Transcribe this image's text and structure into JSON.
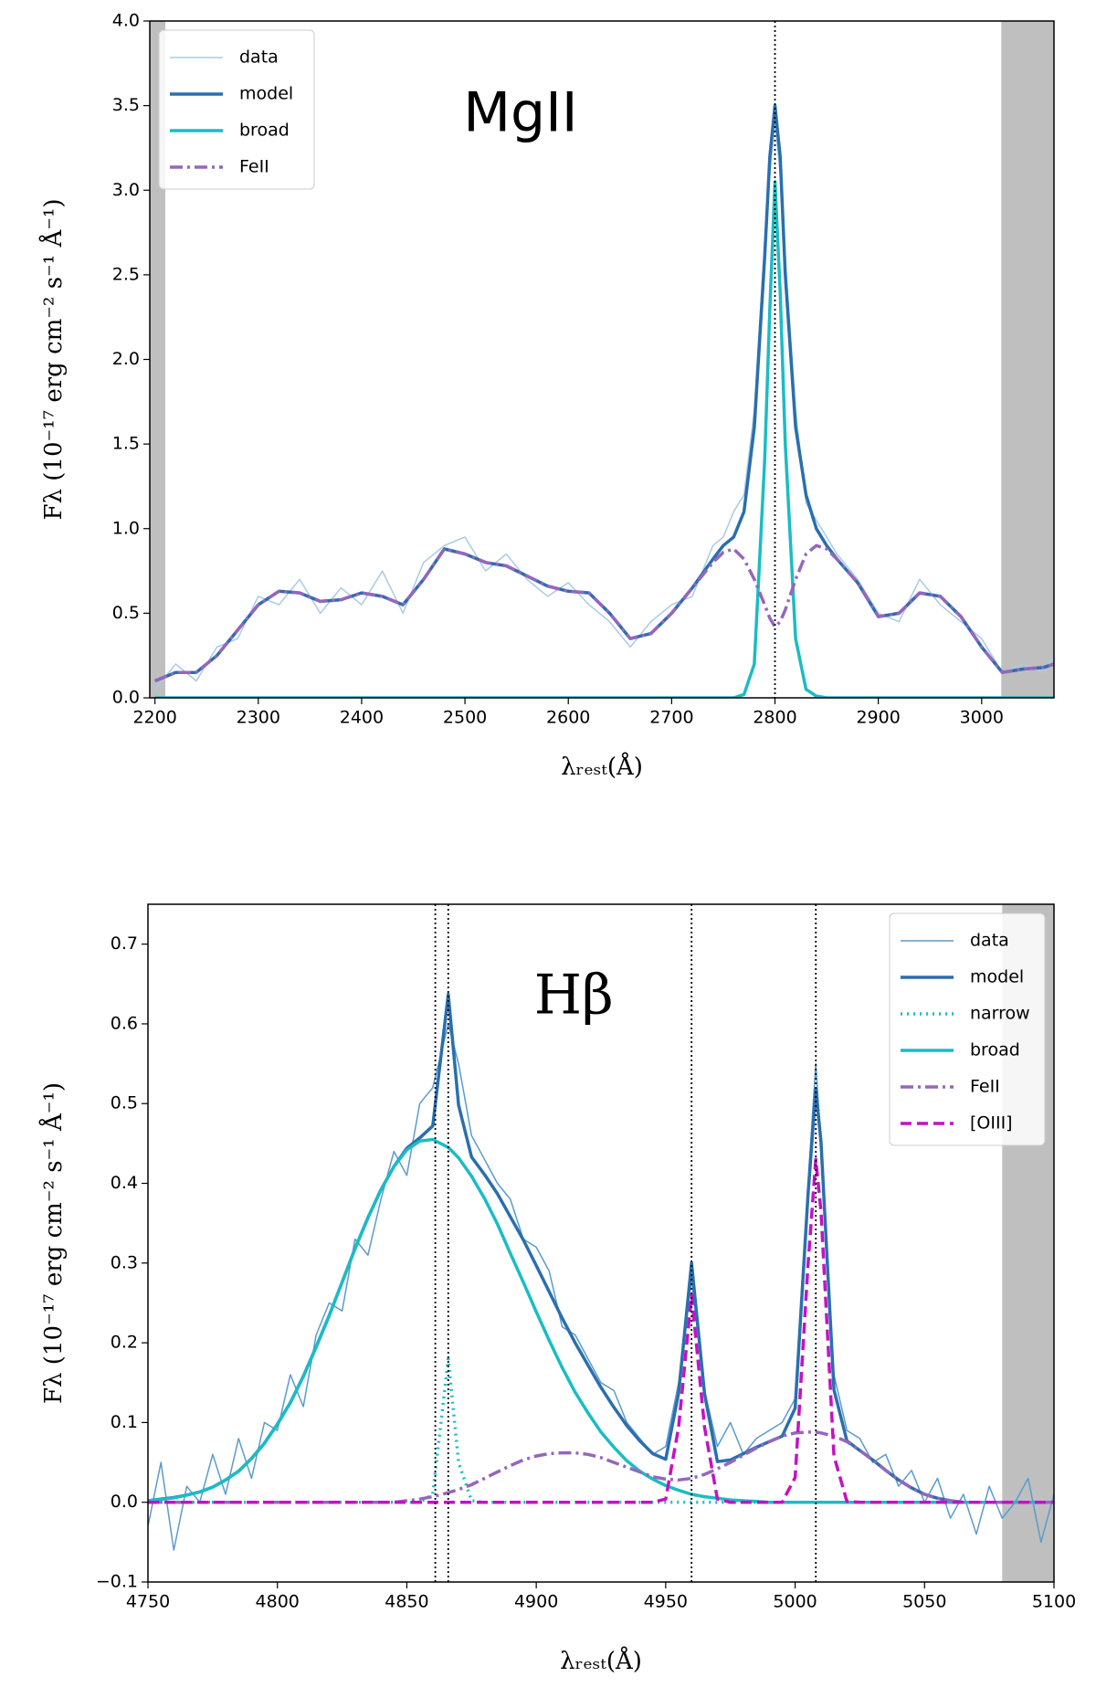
{
  "chart_data": [
    {
      "type": "line",
      "title": "MgII",
      "xlabel": "λᵣₑₛₜ(Å)",
      "ylabel": "Fλ (10⁻¹⁷ erg cm⁻² s⁻¹ Å⁻¹)",
      "x": [
        2200,
        2220,
        2240,
        2260,
        2280,
        2300,
        2320,
        2340,
        2360,
        2380,
        2400,
        2420,
        2440,
        2460,
        2480,
        2500,
        2520,
        2540,
        2560,
        2580,
        2600,
        2620,
        2640,
        2660,
        2680,
        2700,
        2720,
        2740,
        2750,
        2760,
        2770,
        2780,
        2790,
        2795,
        2800,
        2805,
        2810,
        2820,
        2830,
        2840,
        2850,
        2860,
        2880,
        2900,
        2920,
        2940,
        2960,
        2980,
        3000,
        3020,
        3040,
        3060,
        3070
      ],
      "series": [
        {
          "name": "data",
          "color": "#a9cbe4",
          "linestyle": "solid",
          "linewidth": 1.5,
          "values": [
            0.05,
            0.2,
            0.1,
            0.3,
            0.35,
            0.6,
            0.55,
            0.7,
            0.5,
            0.65,
            0.55,
            0.75,
            0.5,
            0.8,
            0.9,
            0.95,
            0.75,
            0.85,
            0.7,
            0.6,
            0.68,
            0.55,
            0.45,
            0.3,
            0.45,
            0.55,
            0.6,
            0.9,
            0.95,
            1.1,
            1.2,
            1.7,
            2.7,
            3.1,
            3.4,
            3.1,
            2.6,
            1.7,
            1.15,
            1.05,
            0.95,
            0.85,
            0.7,
            0.5,
            0.45,
            0.7,
            0.55,
            0.45,
            0.35,
            0.15,
            0.2,
            0.15,
            0.25
          ]
        },
        {
          "name": "model",
          "color": "#2a6fae",
          "linestyle": "solid",
          "linewidth": 3.5,
          "values": [
            0.1,
            0.15,
            0.15,
            0.25,
            0.4,
            0.55,
            0.63,
            0.62,
            0.57,
            0.58,
            0.62,
            0.6,
            0.55,
            0.7,
            0.88,
            0.85,
            0.8,
            0.78,
            0.72,
            0.66,
            0.63,
            0.62,
            0.5,
            0.35,
            0.38,
            0.5,
            0.65,
            0.82,
            0.9,
            0.95,
            1.1,
            1.6,
            2.6,
            3.2,
            3.5,
            3.2,
            2.5,
            1.6,
            1.2,
            1.0,
            0.9,
            0.82,
            0.68,
            0.48,
            0.5,
            0.62,
            0.6,
            0.48,
            0.3,
            0.15,
            0.17,
            0.18,
            0.2
          ]
        },
        {
          "name": "broad",
          "color": "#1bbcc4",
          "linestyle": "solid",
          "linewidth": 3.5,
          "values": [
            0,
            0,
            0,
            0,
            0,
            0,
            0,
            0,
            0,
            0,
            0,
            0,
            0,
            0,
            0,
            0,
            0,
            0,
            0,
            0,
            0,
            0,
            0,
            0,
            0,
            0,
            0,
            0,
            0,
            0,
            0.02,
            0.2,
            1.4,
            2.3,
            3.05,
            2.4,
            1.5,
            0.35,
            0.05,
            0.01,
            0,
            0,
            0,
            0,
            0,
            0,
            0,
            0,
            0,
            0,
            0,
            0,
            0
          ]
        },
        {
          "name": "FeII",
          "color": "#9467bd",
          "linestyle": "dashdot",
          "linewidth": 3.5,
          "values": [
            0.1,
            0.15,
            0.15,
            0.25,
            0.4,
            0.55,
            0.63,
            0.62,
            0.57,
            0.58,
            0.62,
            0.6,
            0.55,
            0.7,
            0.88,
            0.85,
            0.8,
            0.78,
            0.72,
            0.66,
            0.63,
            0.62,
            0.5,
            0.35,
            0.38,
            0.5,
            0.65,
            0.8,
            0.86,
            0.88,
            0.82,
            0.7,
            0.55,
            0.47,
            0.42,
            0.45,
            0.52,
            0.7,
            0.85,
            0.9,
            0.88,
            0.82,
            0.68,
            0.48,
            0.5,
            0.62,
            0.6,
            0.48,
            0.3,
            0.15,
            0.17,
            0.18,
            0.2
          ]
        }
      ],
      "xlim": [
        2195,
        3070
      ],
      "xticks": [
        2200,
        2300,
        2400,
        2500,
        2600,
        2700,
        2800,
        2900,
        3000
      ],
      "ylim": [
        0,
        4
      ],
      "yticks": [
        {
          "value": 0,
          "label": "0.0"
        },
        {
          "value": 0.5,
          "label": "0.5"
        },
        {
          "value": 1,
          "label": "1.0"
        },
        {
          "value": 1.5,
          "label": "1.5"
        },
        {
          "value": 2,
          "label": "2.0"
        },
        {
          "value": 2.5,
          "label": "2.5"
        },
        {
          "value": 3,
          "label": "3.0"
        },
        {
          "value": 3.5,
          "label": "3.5"
        },
        {
          "value": 4,
          "label": "4.0"
        }
      ],
      "vlines": [
        2800
      ],
      "shaded_regions": [
        [
          2195,
          2210
        ],
        [
          3019,
          3070
        ]
      ],
      "shade_color": "#bfbfbf",
      "legend": "upper left"
    },
    {
      "type": "line",
      "title": "Hβ",
      "xlabel": "λᵣₑₛₜ(Å)",
      "ylabel": "Fλ (10⁻¹⁷ erg cm⁻² s⁻¹ Å⁻¹)",
      "x": [
        4750,
        4755,
        4760,
        4765,
        4770,
        4775,
        4780,
        4785,
        4790,
        4795,
        4800,
        4805,
        4810,
        4815,
        4820,
        4825,
        4830,
        4835,
        4840,
        4845,
        4850,
        4855,
        4860,
        4866,
        4870,
        4875,
        4880,
        4885,
        4890,
        4895,
        4900,
        4905,
        4910,
        4915,
        4920,
        4925,
        4930,
        4935,
        4940,
        4945,
        4950,
        4955,
        4960,
        4965,
        4970,
        4975,
        4980,
        4985,
        4990,
        4995,
        5000,
        5005,
        5008,
        5010,
        5015,
        5020,
        5025,
        5030,
        5035,
        5040,
        5045,
        5050,
        5055,
        5060,
        5065,
        5070,
        5075,
        5080,
        5085,
        5090,
        5095,
        5100
      ],
      "series": [
        {
          "name": "data",
          "color": "#5b9bcc",
          "linestyle": "solid",
          "linewidth": 1.5,
          "values": [
            -0.03,
            0.05,
            -0.06,
            0.02,
            0,
            0.06,
            0.01,
            0.08,
            0.03,
            0.1,
            0.09,
            0.16,
            0.12,
            0.21,
            0.25,
            0.24,
            0.33,
            0.31,
            0.38,
            0.44,
            0.41,
            0.5,
            0.52,
            0.6,
            0.55,
            0.46,
            0.43,
            0.4,
            0.38,
            0.33,
            0.32,
            0.29,
            0.22,
            0.21,
            0.18,
            0.15,
            0.14,
            0.1,
            0.08,
            0.06,
            0.07,
            0.15,
            0.28,
            0.14,
            0.07,
            0.1,
            0.06,
            0.08,
            0.09,
            0.1,
            0.13,
            0.4,
            0.55,
            0.45,
            0.16,
            0.09,
            0.08,
            0.05,
            0.06,
            0.02,
            0.04,
            0,
            0.03,
            -0.02,
            0.01,
            -0.04,
            0.02,
            -0.02,
            0,
            0.03,
            -0.05,
            0.01
          ]
        },
        {
          "name": "model",
          "color": "#2a6fae",
          "linestyle": "solid",
          "linewidth": 3.5,
          "values": [
            0.002,
            0.004,
            0.006,
            0.009,
            0.013,
            0.019,
            0.028,
            0.039,
            0.055,
            0.074,
            0.098,
            0.125,
            0.158,
            0.195,
            0.234,
            0.276,
            0.318,
            0.357,
            0.392,
            0.421,
            0.444,
            0.457,
            0.472,
            0.637,
            0.498,
            0.433,
            0.411,
            0.387,
            0.358,
            0.329,
            0.297,
            0.264,
            0.231,
            0.2,
            0.172,
            0.144,
            0.119,
            0.096,
            0.077,
            0.061,
            0.054,
            0.137,
            0.3,
            0.136,
            0.051,
            0.053,
            0.061,
            0.069,
            0.076,
            0.083,
            0.118,
            0.386,
            0.518,
            0.452,
            0.141,
            0.077,
            0.065,
            0.053,
            0.04,
            0.028,
            0.018,
            0.01,
            0.005,
            0.002,
            0,
            0,
            0,
            0,
            0,
            0,
            0,
            0
          ]
        },
        {
          "name": "narrow",
          "color": "#1bbcc4",
          "linestyle": "dotted",
          "linewidth": 3.5,
          "values": [
            0,
            0,
            0,
            0,
            0,
            0,
            0,
            0,
            0,
            0,
            0,
            0,
            0,
            0,
            0,
            0,
            0,
            0,
            0,
            0,
            0,
            0,
            0.01,
            0.18,
            0.05,
            0.002,
            0,
            0,
            0,
            0,
            0,
            0,
            0,
            0,
            0,
            0,
            0,
            0,
            0,
            0,
            0,
            0,
            0,
            0,
            0,
            0,
            0,
            0,
            0,
            0,
            0,
            0,
            0,
            0,
            0,
            0,
            0,
            0,
            0,
            0,
            0,
            0,
            0,
            0,
            0,
            0,
            0,
            0,
            0,
            0,
            0,
            0
          ]
        },
        {
          "name": "broad",
          "color": "#1bbcc4",
          "linestyle": "solid",
          "linewidth": 3.5,
          "values": [
            0.002,
            0.0035,
            0.0055,
            0.009,
            0.013,
            0.019,
            0.028,
            0.039,
            0.055,
            0.074,
            0.098,
            0.125,
            0.158,
            0.195,
            0.234,
            0.276,
            0.318,
            0.357,
            0.392,
            0.421,
            0.442,
            0.453,
            0.455,
            0.445,
            0.432,
            0.409,
            0.381,
            0.349,
            0.312,
            0.276,
            0.239,
            0.203,
            0.169,
            0.138,
            0.112,
            0.088,
            0.069,
            0.052,
            0.039,
            0.029,
            0.021,
            0.015,
            0.01,
            0.007,
            0.005,
            0.003,
            0.002,
            0.001,
            0,
            0,
            0,
            0,
            0,
            0,
            0,
            0,
            0,
            0,
            0,
            0,
            0,
            0,
            0,
            0,
            0,
            0,
            0,
            0,
            0,
            0,
            0,
            0
          ]
        },
        {
          "name": "FeII",
          "color": "#9467bd",
          "linestyle": "dashdot",
          "linewidth": 3.5,
          "values": [
            0,
            0,
            0,
            0,
            0,
            0,
            0,
            0,
            0,
            0,
            0,
            0,
            0,
            0,
            0,
            0,
            0,
            0,
            0,
            0,
            0.002,
            0.004,
            0.007,
            0.012,
            0.016,
            0.022,
            0.03,
            0.038,
            0.046,
            0.053,
            0.058,
            0.061,
            0.062,
            0.062,
            0.06,
            0.056,
            0.05,
            0.044,
            0.038,
            0.032,
            0.029,
            0.028,
            0.03,
            0.035,
            0.042,
            0.05,
            0.059,
            0.068,
            0.076,
            0.083,
            0.087,
            0.088,
            0.088,
            0.087,
            0.083,
            0.076,
            0.065,
            0.053,
            0.04,
            0.028,
            0.018,
            0.01,
            0.005,
            0.002,
            0,
            0,
            0,
            0,
            0,
            0,
            0,
            0
          ]
        },
        {
          "name": "[OIII]",
          "color": "#c412c4",
          "linestyle": "dashed",
          "linewidth": 3.5,
          "values": [
            0,
            0,
            0,
            0,
            0,
            0,
            0,
            0,
            0,
            0,
            0,
            0,
            0,
            0,
            0,
            0,
            0,
            0,
            0,
            0,
            0,
            0,
            0,
            0,
            0,
            0,
            0,
            0,
            0,
            0,
            0,
            0,
            0,
            0,
            0,
            0,
            0,
            0,
            0,
            0,
            0.004,
            0.094,
            0.26,
            0.094,
            0.004,
            0,
            0,
            0,
            0,
            0,
            0.031,
            0.298,
            0.43,
            0.365,
            0.058,
            0.001,
            0,
            0,
            0,
            0,
            0,
            0,
            0,
            0,
            0,
            0,
            0,
            0,
            0,
            0,
            0,
            0
          ]
        }
      ],
      "xlim": [
        4750,
        5100
      ],
      "xticks": [
        4750,
        4800,
        4850,
        4900,
        4950,
        5000,
        5050,
        5100
      ],
      "ylim": [
        -0.1,
        0.75
      ],
      "yticks": [
        {
          "value": -0.1,
          "label": "−0.1"
        },
        {
          "value": 0,
          "label": "0.0"
        },
        {
          "value": 0.1,
          "label": "0.1"
        },
        {
          "value": 0.2,
          "label": "0.2"
        },
        {
          "value": 0.3,
          "label": "0.3"
        },
        {
          "value": 0.4,
          "label": "0.4"
        },
        {
          "value": 0.5,
          "label": "0.5"
        },
        {
          "value": 0.6,
          "label": "0.6"
        },
        {
          "value": 0.7,
          "label": "0.7"
        }
      ],
      "vlines": [
        4861,
        4866,
        4960,
        5008
      ],
      "shaded_regions": [
        [
          5080,
          5100
        ]
      ],
      "shade_color": "#bfbfbf",
      "legend": "upper right"
    }
  ]
}
